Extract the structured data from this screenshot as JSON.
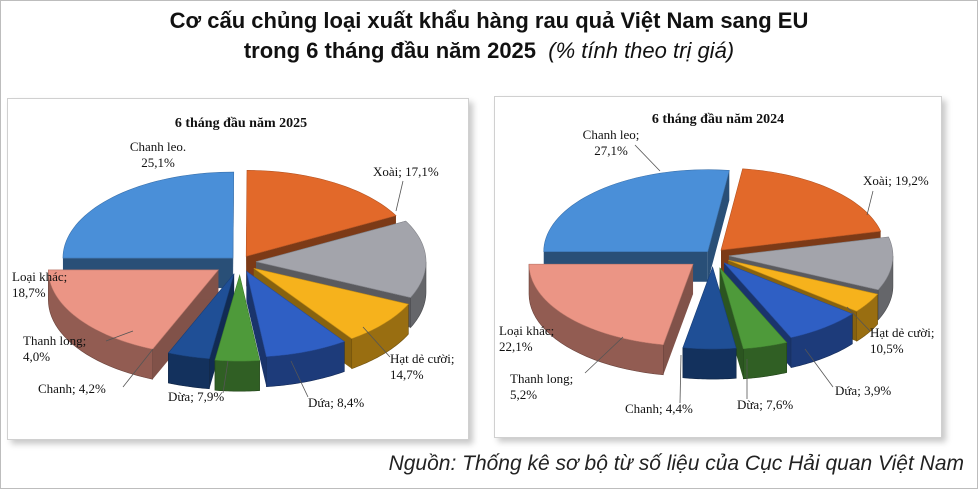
{
  "title_line1": "Cơ cấu chủng loại xuất khẩu hàng rau quả Việt Nam sang EU",
  "title_line2": "trong 6 tháng đầu năm 2025",
  "title_unit": "(% tính theo trị giá)",
  "source": "Nguồn: Thống kê sơ bộ từ số liệu của Cục Hải quan Việt Nam",
  "chart_data": [
    {
      "type": "pie",
      "style": "3d-exploded",
      "title": "6 tháng đầu  năm 2025",
      "slices": [
        {
          "name": "Chanh leo",
          "value": 25.1,
          "label": [
            "Chanh leo.",
            "25,1%"
          ],
          "color": "#4a8fd8"
        },
        {
          "name": "Xoài",
          "value": 17.1,
          "label": [
            "Xoài; 17,1%"
          ],
          "color": "#e2692a"
        },
        {
          "name": "Hạt dẻ cười",
          "value": 14.7,
          "label": [
            "Hạt dẻ cười;",
            "14,7%"
          ],
          "color": "#a3a4ab"
        },
        {
          "name": "Dứa",
          "value": 8.4,
          "label": [
            "Dứa; 8,4%"
          ],
          "color": "#f6b21c"
        },
        {
          "name": "Dừa",
          "value": 7.9,
          "label": [
            "Dừa; 7,9%"
          ],
          "color": "#2f5fc4"
        },
        {
          "name": "Chanh",
          "value": 4.2,
          "label": [
            "Chanh; 4,2%"
          ],
          "color": "#4e9a3a"
        },
        {
          "name": "Thanh long",
          "value": 4.0,
          "label": [
            "Thanh long;",
            "4,0%"
          ],
          "color": "#1f4f96"
        },
        {
          "name": "Loại khác",
          "value": 18.7,
          "label": [
            "Loại khác;",
            "18,7%"
          ],
          "color": "#eb9585"
        }
      ]
    },
    {
      "type": "pie",
      "style": "3d-exploded",
      "title": "6 tháng đầu  năm 2024",
      "slices": [
        {
          "name": "Chanh leo",
          "value": 27.1,
          "label": [
            "Chanh leo;",
            "27,1%"
          ],
          "color": "#4a8fd8"
        },
        {
          "name": "Xoài",
          "value": 19.2,
          "label": [
            "Xoài; 19,2%"
          ],
          "color": "#e2692a"
        },
        {
          "name": "Hạt dẻ cười",
          "value": 10.5,
          "label": [
            "Hạt dẻ cười;",
            "10,5%"
          ],
          "color": "#a3a4ab"
        },
        {
          "name": "Dứa",
          "value": 3.9,
          "label": [
            "Dứa; 3,9%"
          ],
          "color": "#f6b21c"
        },
        {
          "name": "Dừa",
          "value": 7.6,
          "label": [
            "Dừa; 7,6%"
          ],
          "color": "#2f5fc4"
        },
        {
          "name": "Chanh",
          "value": 4.4,
          "label": [
            "Chanh; 4,4%"
          ],
          "color": "#4e9a3a"
        },
        {
          "name": "Thanh long",
          "value": 5.2,
          "label": [
            "Thanh long;",
            "5,2%"
          ],
          "color": "#1f4f96"
        },
        {
          "name": "Loại khác",
          "value": 22.1,
          "label": [
            "Loại khác;",
            "22,1%"
          ],
          "color": "#eb9585"
        }
      ]
    }
  ]
}
